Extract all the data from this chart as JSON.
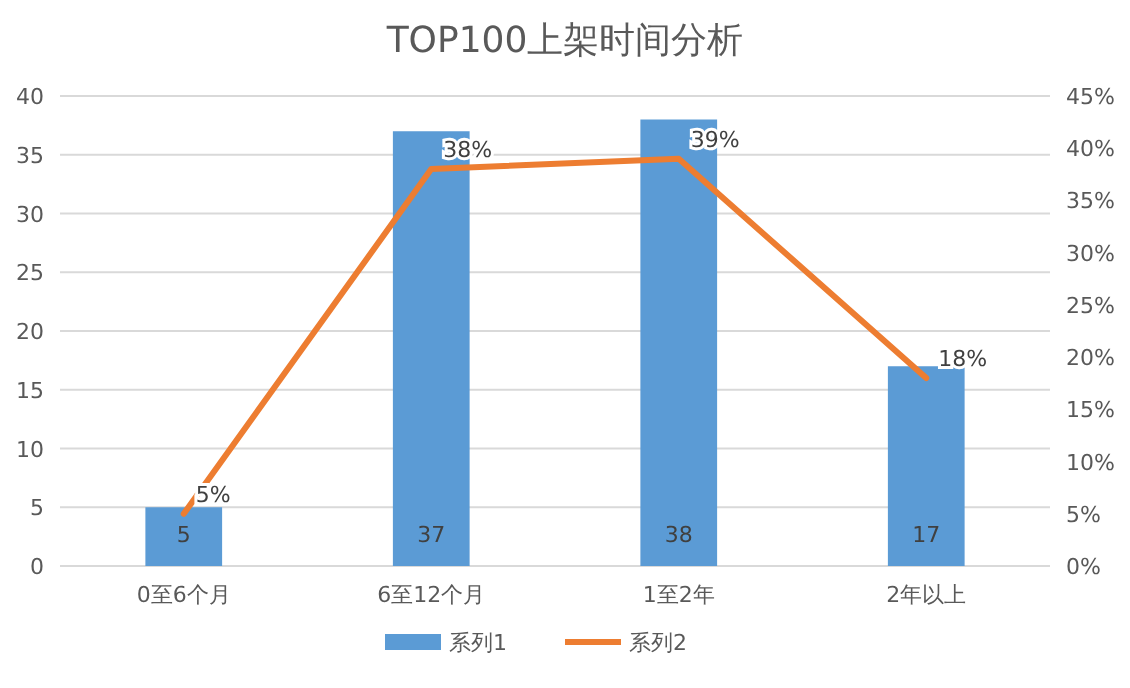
{
  "chart_data": {
    "type": "bar",
    "title": "TOP100上架时间分析",
    "categories": [
      "0至6个月",
      "6至12个月",
      "1至2年",
      "2年以上"
    ],
    "series": [
      {
        "name": "系列1",
        "color": "#5b9bd5",
        "values": [
          5,
          37,
          38,
          17
        ],
        "value_labels": [
          "5",
          "37",
          "38",
          "17"
        ]
      },
      {
        "name": "系列2",
        "type": "line",
        "axis": "y2",
        "color": "#ed7d31",
        "values": [
          5,
          38,
          39,
          18
        ],
        "value_labels": [
          "5%",
          "38%",
          "39%",
          "18%"
        ]
      }
    ],
    "ylim": [
      0,
      40
    ],
    "yticks": [
      0,
      5,
      10,
      15,
      20,
      25,
      30,
      35,
      40
    ],
    "y2lim": [
      0,
      45
    ],
    "y2ticks": [
      {
        "value": 0,
        "label": "0%"
      },
      {
        "value": 5,
        "label": "5%"
      },
      {
        "value": 10,
        "label": "10%"
      },
      {
        "value": 15,
        "label": "15%"
      },
      {
        "value": 20,
        "label": "20%"
      },
      {
        "value": 25,
        "label": "25%"
      },
      {
        "value": 30,
        "label": "30%"
      },
      {
        "value": 35,
        "label": "35%"
      },
      {
        "value": 40,
        "label": "40%"
      },
      {
        "value": 45,
        "label": "45%"
      }
    ],
    "grid": "y",
    "legend": "bottom",
    "marker": "none",
    "line_style": "solid"
  }
}
